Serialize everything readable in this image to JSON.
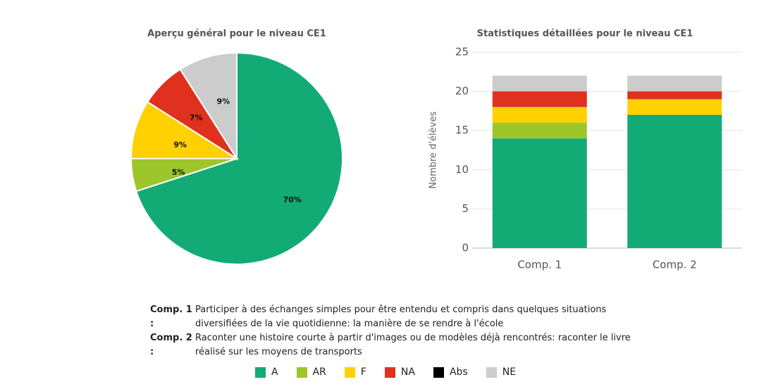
{
  "chart_data": [
    {
      "type": "pie",
      "title": "Aperçu général pour le niveau CE1",
      "values": [
        70,
        5,
        9,
        7,
        9
      ],
      "value_labels": [
        "70%",
        "5%",
        "9%",
        "7%",
        "9%"
      ],
      "colors": [
        "#12ab76",
        "#9dc62b",
        "#ffd100",
        "#e0301e",
        "#cccccc"
      ]
    },
    {
      "type": "stacked_bar",
      "title": "Statistiques détaillées pour le niveau CE1",
      "y_label": "Nombre d'élèves",
      "categories": [
        "Comp. 1",
        "Comp. 2"
      ],
      "series": [
        {
          "name": "A",
          "color": "#12ab76",
          "values": [
            14,
            17
          ]
        },
        {
          "name": "AR",
          "color": "#9dc62b",
          "values": [
            2,
            0
          ]
        },
        {
          "name": "F",
          "color": "#ffd100",
          "values": [
            2,
            2
          ]
        },
        {
          "name": "NA",
          "color": "#e0301e",
          "values": [
            2,
            1
          ]
        },
        {
          "name": "Abs",
          "color": "#000000",
          "values": [
            0,
            0
          ]
        },
        {
          "name": "NE",
          "color": "#cccccc",
          "values": [
            2,
            2
          ]
        }
      ],
      "ylim": [
        0,
        25
      ],
      "yticks": [
        0,
        5,
        10,
        15,
        20,
        25
      ],
      "grid": true,
      "legend": "bottom"
    }
  ],
  "notes": [
    {
      "term": "Comp. 1 :",
      "text": "Participer à des échanges simples pour être entendu et compris dans quelques situations diversifiées de la vie quotidienne: la manière de se rendre à l'école"
    },
    {
      "term": "Comp. 2 :",
      "text": "Raconter une histoire courte à partir d'images ou de modèles déjà rencontrés: raconter le livre réalisé sur les moyens de transports"
    }
  ]
}
